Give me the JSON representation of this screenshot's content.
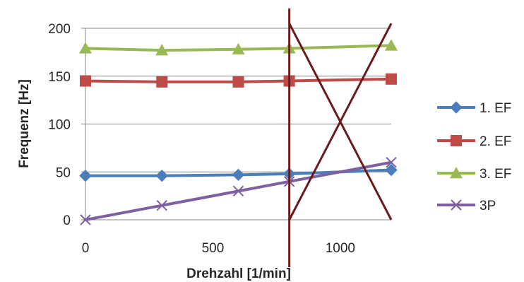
{
  "chart_data": {
    "type": "line",
    "xlabel": "Drehzahl [1/min]",
    "ylabel": "Frequenz [Hz]",
    "xlim": [
      0,
      1200
    ],
    "ylim": [
      0,
      200
    ],
    "xticks": [
      0,
      500,
      1000
    ],
    "yticks": [
      0,
      50,
      100,
      150,
      200
    ],
    "grid": "horizontal",
    "legend_position": "right",
    "series": [
      {
        "name": "1. EF",
        "color": "#4a7ebb",
        "marker": "diamond",
        "x": [
          0,
          300,
          600,
          800,
          1200
        ],
        "y": [
          46,
          46,
          47,
          48,
          52
        ]
      },
      {
        "name": "2. EF",
        "color": "#be4b48",
        "marker": "square",
        "x": [
          0,
          300,
          600,
          800,
          1200
        ],
        "y": [
          145,
          144,
          144,
          145,
          147
        ]
      },
      {
        "name": "3. EF",
        "color": "#98b954",
        "marker": "triangle",
        "x": [
          0,
          300,
          600,
          800,
          1200
        ],
        "y": [
          179,
          177,
          178,
          179,
          182
        ]
      },
      {
        "name": "3P",
        "color": "#7d60a0",
        "marker": "x",
        "x": [
          0,
          300,
          600,
          800,
          1200
        ],
        "y": [
          0,
          15,
          30,
          40,
          60
        ]
      }
    ],
    "annotations": {
      "color": "#6b1a1a",
      "vertical_line_x": 800,
      "cross_lines": [
        {
          "x": [
            800,
            1200
          ],
          "y": [
            205,
            0
          ]
        },
        {
          "x": [
            800,
            1200
          ],
          "y": [
            0,
            205
          ]
        }
      ]
    }
  }
}
